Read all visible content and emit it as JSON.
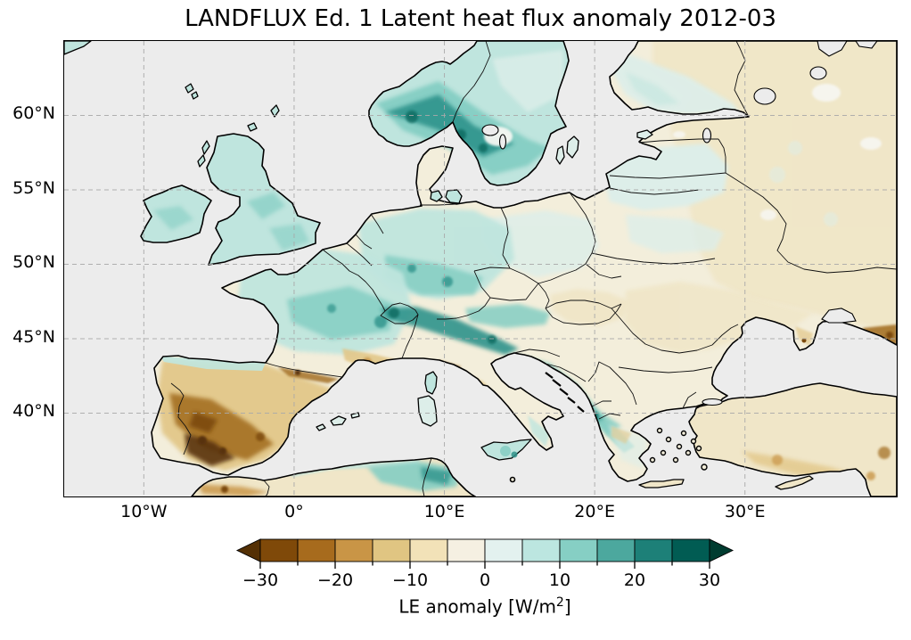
{
  "figure": {
    "title": "LANDFLUX Ed. 1 Latent heat flux anomaly 2012-03"
  },
  "chart_data": {
    "type": "heatmap",
    "subtype": "geographic_raster_map",
    "region": "Europe",
    "projection": "PlateCarree",
    "extent": {
      "lon_min": -15.3,
      "lon_max": 40.1,
      "lat_min": 34.4,
      "lat_max": 65.0
    },
    "x_axis": {
      "ticks": [
        -10,
        0,
        10,
        20,
        30
      ],
      "labels": [
        "10°W",
        "0°",
        "10°E",
        "20°E",
        "30°E"
      ]
    },
    "y_axis": {
      "ticks": [
        60,
        55,
        50,
        45,
        40
      ],
      "labels": [
        "60°N",
        "55°N",
        "50°N",
        "45°N",
        "40°N"
      ]
    },
    "grid": {
      "style": "dashed",
      "color": "#a8a8a8"
    },
    "colorbar": {
      "label_prefix": "LE anomaly [W/m",
      "label_sup": "2",
      "label_suffix": "]",
      "units": "W/m²",
      "ticks": [
        -30,
        -20,
        -10,
        0,
        10,
        20,
        30
      ],
      "tick_labels": [
        "−30",
        "−20",
        "−10",
        "0",
        "10",
        "20",
        "30"
      ],
      "bin_edges": [
        -30,
        -25,
        -20,
        -15,
        -10,
        -5,
        0,
        5,
        10,
        15,
        20,
        25,
        30
      ],
      "extend": "both",
      "colormap": "BrBG (discrete)",
      "colors": [
        "#543005",
        "#7f4909",
        "#a76b1d",
        "#c99546",
        "#e0c582",
        "#f2e2b8",
        "#f5f0e2",
        "#e3f1ef",
        "#bce6e0",
        "#86cfc4",
        "#4ca89e",
        "#1d8078",
        "#015c53",
        "#003c30"
      ]
    },
    "regional_anomalies": [
      {
        "region": "Iberian Peninsula (Portugal, SW Spain)",
        "anomaly_wm2": "-10 to -30, darkest brown in southwest"
      },
      {
        "region": "Northern Spain coast / Pyrenees",
        "anomaly_wm2": "+5 teal strip; Pyrenees patches -10 to -20"
      },
      {
        "region": "France",
        "anomaly_wm2": "+5 to +15"
      },
      {
        "region": "Southern France Mediterranean coast",
        "anomaly_wm2": "-5 to -15"
      },
      {
        "region": "Alps (Switzerland, Austria, N Italy)",
        "anomaly_wm2": "+15 to +25"
      },
      {
        "region": "Germany, Benelux, Czechia",
        "anomaly_wm2": "+5 to +15"
      },
      {
        "region": "UK and Ireland",
        "anomaly_wm2": "+5 to +10"
      },
      {
        "region": "Southern Norway and central Sweden",
        "anomaly_wm2": "+10 to +25"
      },
      {
        "region": "Finland and Baltics",
        "anomaly_wm2": "0 to +10, pale teal"
      },
      {
        "region": "Western Russia",
        "anomaly_wm2": "0 to -5, pale beige with teal speckles"
      },
      {
        "region": "Hungary, Romania, Ukraine lowlands",
        "anomaly_wm2": "0 to -5"
      },
      {
        "region": "Dinaric Alps / western Balkans",
        "anomaly_wm2": "+10 to +20"
      },
      {
        "region": "Central Italy",
        "anomaly_wm2": "-5 to -10"
      },
      {
        "region": "Sicily, Tunisia, Algeria coast",
        "anomaly_wm2": "+5 to +15"
      },
      {
        "region": "Turkey / Anatolia",
        "anomaly_wm2": "-5 to -15 patches"
      },
      {
        "region": "Morocco interior",
        "anomaly_wm2": "-5 to -15"
      }
    ]
  },
  "palette": {
    "ocean": "#ececec",
    "cream": "#f3eedb",
    "tealPale": "#ddeee9",
    "tealL": "#bfe5de",
    "tealM": "#84cec3",
    "tealD": "#2f938b",
    "tealXD": "#0b6b60",
    "beige1": "#f0e6c8",
    "tan1": "#e2c789",
    "tan2": "#c9964a",
    "brown2": "#a06a1e",
    "brown3": "#7b4a0c",
    "brown4": "#59330a"
  }
}
